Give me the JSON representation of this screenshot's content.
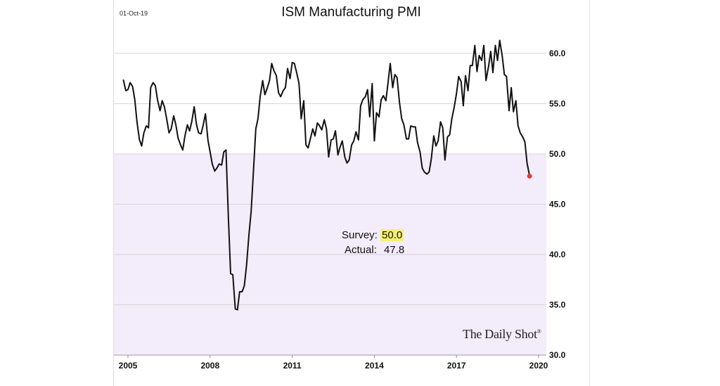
{
  "header": {
    "date_stamp": "01-Oct-19"
  },
  "chart_data": {
    "type": "line",
    "title": "ISM Manufacturing PMI",
    "xlabel": "",
    "ylabel": "",
    "ylim": [
      30,
      61
    ],
    "y_ticks": [
      "30.0",
      "35.0",
      "40.0",
      "45.0",
      "50.0",
      "55.0",
      "60.0"
    ],
    "x_ticks": [
      "2005",
      "2008",
      "2011",
      "2014",
      "2017",
      "2020"
    ],
    "x_tick_years": [
      2005,
      2008,
      2011,
      2014,
      2017,
      2020
    ],
    "shaded_region": {
      "from": 30,
      "to": 50,
      "color": "#f3ecfa"
    },
    "grid": true,
    "series": [
      {
        "color": "#111111",
        "x": [
          2004.83,
          2004.92,
          2005.0,
          2005.08,
          2005.17,
          2005.25,
          2005.33,
          2005.42,
          2005.5,
          2005.58,
          2005.67,
          2005.75,
          2005.83,
          2005.92,
          2006.0,
          2006.08,
          2006.17,
          2006.25,
          2006.33,
          2006.42,
          2006.5,
          2006.58,
          2006.67,
          2006.75,
          2006.83,
          2006.92,
          2007.0,
          2007.08,
          2007.17,
          2007.25,
          2007.33,
          2007.42,
          2007.5,
          2007.58,
          2007.67,
          2007.75,
          2007.83,
          2007.92,
          2008.0,
          2008.08,
          2008.17,
          2008.25,
          2008.33,
          2008.42,
          2008.5,
          2008.58,
          2008.67,
          2008.75,
          2008.83,
          2008.92,
          2009.0,
          2009.08,
          2009.17,
          2009.25,
          2009.33,
          2009.42,
          2009.5,
          2009.58,
          2009.67,
          2009.75,
          2009.83,
          2009.92,
          2010.0,
          2010.08,
          2010.17,
          2010.25,
          2010.33,
          2010.42,
          2010.5,
          2010.58,
          2010.67,
          2010.75,
          2010.83,
          2010.92,
          2011.0,
          2011.08,
          2011.17,
          2011.25,
          2011.33,
          2011.42,
          2011.5,
          2011.58,
          2011.67,
          2011.75,
          2011.83,
          2011.92,
          2012.0,
          2012.08,
          2012.17,
          2012.25,
          2012.33,
          2012.42,
          2012.5,
          2012.58,
          2012.67,
          2012.75,
          2012.83,
          2012.92,
          2013.0,
          2013.08,
          2013.17,
          2013.25,
          2013.33,
          2013.42,
          2013.5,
          2013.58,
          2013.67,
          2013.75,
          2013.83,
          2013.92,
          2014.0,
          2014.08,
          2014.17,
          2014.25,
          2014.33,
          2014.42,
          2014.5,
          2014.58,
          2014.67,
          2014.75,
          2014.83,
          2014.92,
          2015.0,
          2015.08,
          2015.17,
          2015.25,
          2015.33,
          2015.42,
          2015.5,
          2015.58,
          2015.67,
          2015.75,
          2015.83,
          2015.92,
          2016.0,
          2016.08,
          2016.17,
          2016.25,
          2016.33,
          2016.42,
          2016.5,
          2016.58,
          2016.67,
          2016.75,
          2016.83,
          2016.92,
          2017.0,
          2017.08,
          2017.17,
          2017.25,
          2017.33,
          2017.42,
          2017.5,
          2017.58,
          2017.67,
          2017.75,
          2017.83,
          2017.92,
          2018.0,
          2018.08,
          2018.17,
          2018.25,
          2018.33,
          2018.42,
          2018.5,
          2018.58,
          2018.67,
          2018.75,
          2018.83,
          2018.92,
          2019.0,
          2019.08,
          2019.17,
          2019.25,
          2019.33,
          2019.42,
          2019.5,
          2019.58,
          2019.67
        ],
        "values": [
          57.4,
          56.3,
          56.4,
          57.1,
          56.7,
          55.4,
          53.2,
          51.4,
          50.8,
          52.1,
          52.8,
          52.6,
          56.6,
          57.1,
          56.8,
          55.4,
          54.3,
          55.3,
          54.7,
          53.4,
          52.1,
          52.5,
          53.8,
          52.9,
          51.6,
          50.9,
          50.4,
          51.8,
          52.9,
          52.3,
          53.2,
          54.7,
          53.0,
          52.1,
          52.0,
          52.9,
          54.0,
          51.4,
          50.2,
          49.0,
          48.3,
          48.6,
          49.0,
          48.9,
          50.2,
          50.4,
          43.5,
          38.1,
          38.0,
          34.6,
          34.5,
          36.3,
          36.3,
          36.9,
          38.9,
          42.0,
          44.3,
          48.1,
          52.5,
          53.5,
          55.7,
          57.3,
          55.9,
          56.5,
          57.3,
          59.0,
          58.3,
          57.8,
          56.1,
          55.7,
          56.3,
          56.6,
          58.5,
          57.5,
          59.1,
          59.0,
          58.0,
          57.0,
          53.5,
          55.3,
          50.9,
          50.6,
          51.6,
          52.5,
          51.8,
          53.1,
          52.8,
          52.4,
          53.4,
          52.5,
          49.7,
          51.4,
          51.5,
          52.3,
          49.9,
          50.7,
          51.3,
          49.7,
          49.1,
          49.4,
          50.9,
          51.3,
          52.2,
          51.4,
          54.8,
          55.4,
          55.7,
          56.4,
          53.7,
          57.0,
          51.3,
          54.1,
          53.7,
          55.4,
          55.8,
          55.3,
          57.1,
          59.0,
          56.6,
          57.9,
          57.6,
          55.1,
          53.5,
          52.9,
          51.5,
          51.5,
          52.8,
          52.7,
          52.7,
          51.1,
          50.2,
          48.6,
          48.2,
          48.0,
          48.2,
          49.5,
          51.8,
          50.8,
          51.3,
          53.2,
          52.6,
          49.4,
          51.7,
          51.9,
          53.5,
          54.7,
          56.0,
          57.7,
          57.2,
          54.8,
          57.8,
          56.3,
          58.8,
          58.8,
          60.8,
          58.2,
          59.8,
          59.3,
          60.8,
          57.3,
          58.7,
          60.2,
          58.1,
          60.8,
          59.3,
          61.3,
          59.8,
          57.9,
          57.7,
          54.3,
          56.6,
          54.2,
          55.3,
          52.8,
          52.1,
          51.7,
          51.2,
          49.1,
          47.8
        ]
      }
    ],
    "last_point_marker_color": "#e53935",
    "annotations": {
      "survey_label": "Survey:",
      "survey_value": "50.0",
      "actual_label": "Actual:",
      "actual_value": "47.8"
    },
    "source": "The Daily Shot",
    "source_mark": "®"
  }
}
